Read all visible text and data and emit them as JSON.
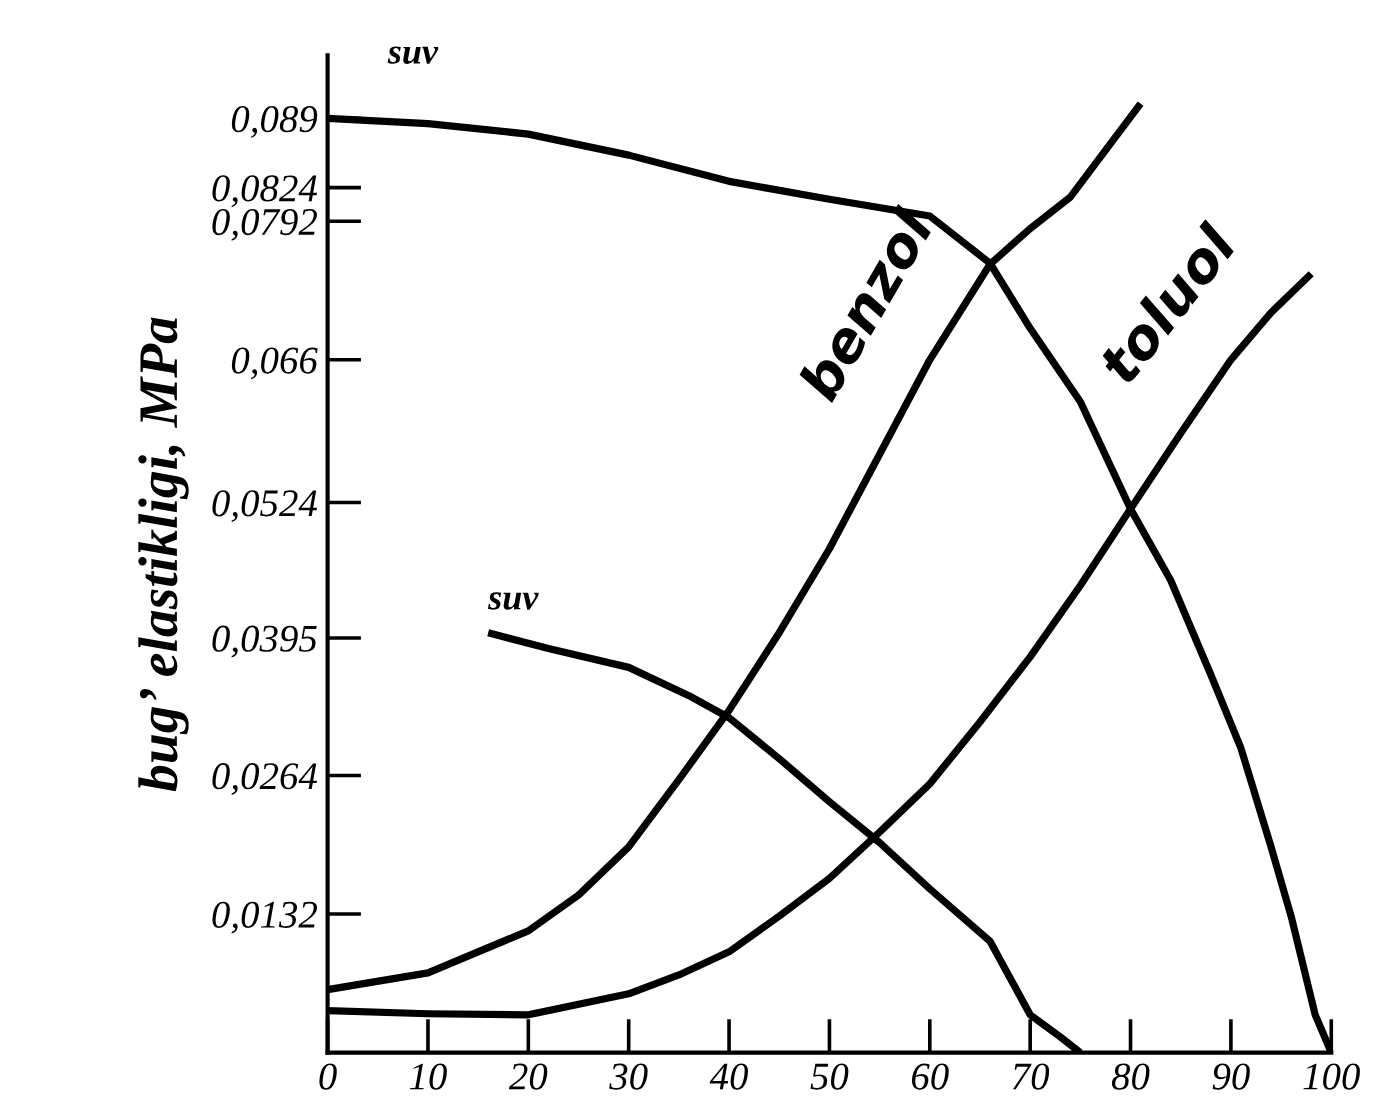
{
  "chart_data": {
    "type": "line",
    "ylabel": "bug’ elastikligi, MPa",
    "xlim": [
      0,
      100
    ],
    "ylim": [
      0,
      0.095
    ],
    "xticks": [
      0,
      10,
      20,
      30,
      40,
      50,
      60,
      70,
      80,
      90,
      100
    ],
    "yticks": [
      {
        "value": 0.0132,
        "label": "0,0132"
      },
      {
        "value": 0.0264,
        "label": "0,0264"
      },
      {
        "value": 0.0395,
        "label": "0,0395"
      },
      {
        "value": 0.0524,
        "label": "0,0524"
      },
      {
        "value": 0.066,
        "label": "0,066"
      },
      {
        "value": 0.0792,
        "label": "0,0792"
      },
      {
        "value": 0.0824,
        "label": "0,0824"
      },
      {
        "value": 0.089,
        "label": "0,089"
      }
    ],
    "grid": false,
    "marker": "none",
    "line_style": "solid",
    "series": [
      {
        "name": "suv",
        "color": "#000000",
        "x": [
          0,
          10,
          20,
          30,
          40,
          50,
          60,
          66,
          70,
          75,
          80,
          84,
          88,
          91,
          94,
          96,
          98.4,
          100
        ],
        "values": [
          0.089,
          0.0885,
          0.0875,
          0.0855,
          0.083,
          0.0813,
          0.0797,
          0.0752,
          0.069,
          0.062,
          0.0518,
          0.045,
          0.036,
          0.029,
          0.0196,
          0.013,
          0.0036,
          0
        ]
      },
      {
        "name": "suv",
        "color": "#000000",
        "x": [
          16,
          22,
          30,
          36,
          40,
          45,
          50,
          55,
          60,
          66,
          70,
          73,
          75
        ],
        "values": [
          0.04,
          0.0385,
          0.0367,
          0.034,
          0.0319,
          0.028,
          0.0239,
          0.02,
          0.0156,
          0.0106,
          0.0036,
          0.0015,
          0
        ]
      },
      {
        "name": "benzol",
        "color": "#000000",
        "x": [
          0,
          10,
          20,
          25,
          30,
          35,
          40,
          45,
          50,
          55,
          60,
          66,
          70,
          74,
          81
        ],
        "values": [
          0.006,
          0.0076,
          0.0116,
          0.015,
          0.0196,
          0.026,
          0.0326,
          0.04,
          0.048,
          0.057,
          0.066,
          0.0751,
          0.0785,
          0.0815,
          0.0904
        ]
      },
      {
        "name": "toluol",
        "color": "#000000",
        "x": [
          0,
          10,
          20,
          30,
          35,
          40,
          45,
          50,
          55,
          60,
          65,
          70,
          75,
          80,
          85,
          90,
          94,
          98
        ],
        "values": [
          0.004,
          0.0037,
          0.0036,
          0.0056,
          0.0074,
          0.0096,
          0.013,
          0.0166,
          0.021,
          0.0256,
          0.0315,
          0.0377,
          0.0445,
          0.0518,
          0.059,
          0.066,
          0.0705,
          0.0742
        ]
      }
    ]
  }
}
